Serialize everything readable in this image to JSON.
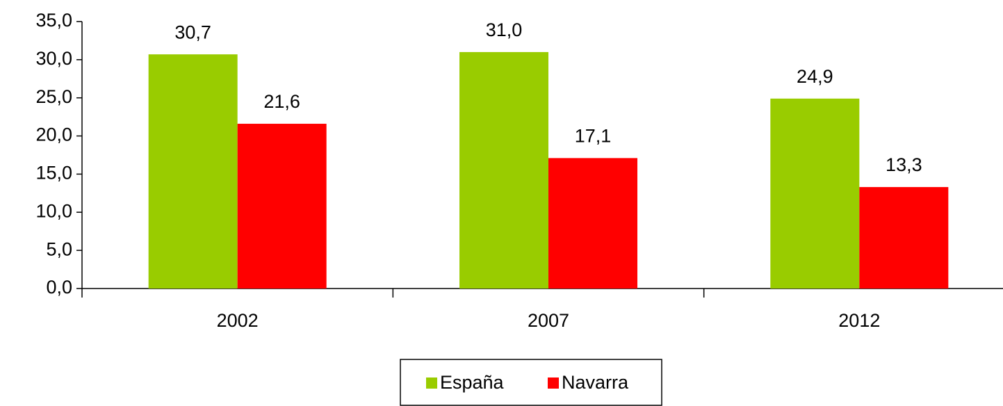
{
  "chart_data": {
    "type": "bar",
    "categories": [
      "2002",
      "2007",
      "2012"
    ],
    "series": [
      {
        "name": "España",
        "color": "#99cc00",
        "values": [
          30.7,
          31.0,
          24.9
        ],
        "value_labels": [
          "30,7",
          "31,0",
          "24,9"
        ]
      },
      {
        "name": "Navarra",
        "color": "#ff0000",
        "values": [
          21.6,
          17.1,
          13.3
        ],
        "value_labels": [
          "21,6",
          "17,1",
          "13,3"
        ]
      }
    ],
    "ylim": [
      0,
      35
    ],
    "yticks": [
      {
        "value": 0,
        "label": "0,0"
      },
      {
        "value": 5,
        "label": "5,0"
      },
      {
        "value": 10,
        "label": "10,0"
      },
      {
        "value": 15,
        "label": "15,0"
      },
      {
        "value": 20,
        "label": "20,0"
      },
      {
        "value": 25,
        "label": "25,0"
      },
      {
        "value": 30,
        "label": "30,0"
      },
      {
        "value": 35,
        "label": "35,0"
      }
    ],
    "grid": false,
    "legend": "bottom"
  }
}
